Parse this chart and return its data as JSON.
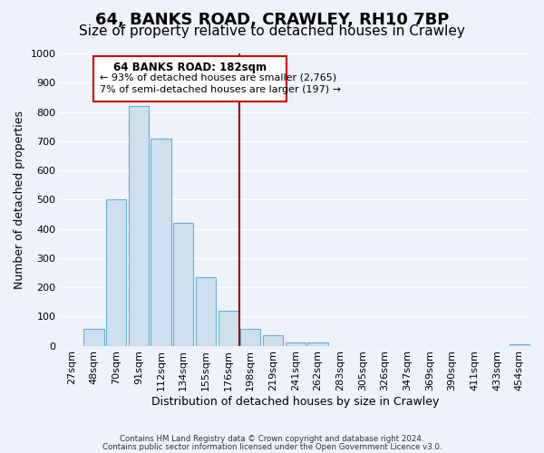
{
  "title": "64, BANKS ROAD, CRAWLEY, RH10 7BP",
  "subtitle": "Size of property relative to detached houses in Crawley",
  "xlabel": "Distribution of detached houses by size in Crawley",
  "ylabel": "Number of detached properties",
  "bar_color": "#cce0f0",
  "bar_edge_color": "#6aafd4",
  "background_color": "#eef2fa",
  "grid_color": "#ffffff",
  "bin_labels": [
    "27sqm",
    "48sqm",
    "70sqm",
    "91sqm",
    "112sqm",
    "134sqm",
    "155sqm",
    "176sqm",
    "198sqm",
    "219sqm",
    "241sqm",
    "262sqm",
    "283sqm",
    "305sqm",
    "326sqm",
    "347sqm",
    "369sqm",
    "390sqm",
    "411sqm",
    "433sqm",
    "454sqm"
  ],
  "bar_values": [
    0,
    57,
    500,
    820,
    710,
    420,
    235,
    120,
    57,
    35,
    12,
    12,
    0,
    0,
    0,
    0,
    0,
    0,
    0,
    0,
    5
  ],
  "ylim": [
    0,
    1000
  ],
  "yticks": [
    0,
    100,
    200,
    300,
    400,
    500,
    600,
    700,
    800,
    900,
    1000
  ],
  "property_label": "64 BANKS ROAD: 182sqm",
  "annotation_line1": "← 93% of detached houses are smaller (2,765)",
  "annotation_line2": "7% of semi-detached houses are larger (197) →",
  "vline_color": "#990000",
  "vline_x": 7.5,
  "footnote1": "Contains HM Land Registry data © Crown copyright and database right 2024.",
  "footnote2": "Contains public sector information licensed under the Open Government Licence v3.0.",
  "title_fontsize": 13,
  "subtitle_fontsize": 11,
  "axis_label_fontsize": 9,
  "tick_fontsize": 8
}
